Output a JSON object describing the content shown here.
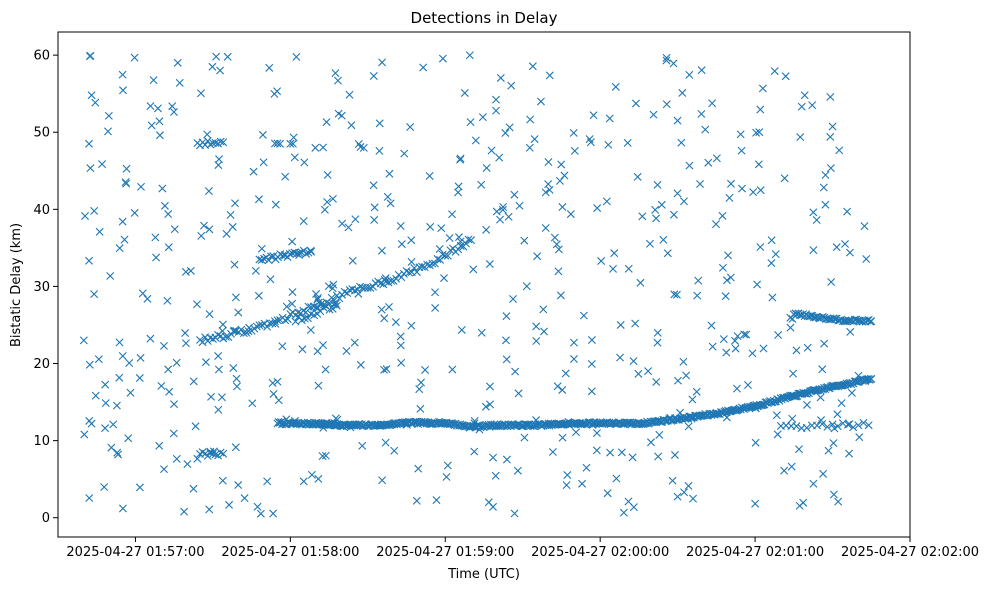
{
  "chart_data": {
    "type": "scatter",
    "title": "Detections in Delay",
    "xlabel": "Time (UTC)",
    "ylabel": "Bistatic Delay (km)",
    "marker": "x",
    "color": "#1f77b4",
    "grid": false,
    "legend": "none",
    "x_unit": "seconds after 2025-04-27 01:56:30 UTC",
    "xlim": [
      0,
      330
    ],
    "ylim": [
      -2.5,
      63
    ],
    "x_ticks": [
      {
        "value": 30,
        "label": "2025-04-27 01:57:00"
      },
      {
        "value": 90,
        "label": "2025-04-27 01:58:00"
      },
      {
        "value": 150,
        "label": "2025-04-27 01:59:00"
      },
      {
        "value": 210,
        "label": "2025-04-27 02:00:00"
      },
      {
        "value": 270,
        "label": "2025-04-27 02:01:00"
      },
      {
        "value": 330,
        "label": "2025-04-27 02:02:00"
      }
    ],
    "y_ticks": [
      {
        "value": 0,
        "label": "0"
      },
      {
        "value": 10,
        "label": "10"
      },
      {
        "value": 20,
        "label": "20"
      },
      {
        "value": 30,
        "label": "30"
      },
      {
        "value": 40,
        "label": "40"
      },
      {
        "value": 50,
        "label": "50"
      },
      {
        "value": 60,
        "label": "60"
      }
    ],
    "tracks": [
      {
        "name": "track-low",
        "points": [
          [
            85,
            12.3
          ],
          [
            90,
            12.2
          ],
          [
            100,
            12.2
          ],
          [
            110,
            12.0
          ],
          [
            125,
            12.0
          ],
          [
            135,
            12.3
          ],
          [
            150,
            12.3
          ],
          [
            160,
            11.8
          ],
          [
            170,
            12.0
          ],
          [
            185,
            12.0
          ],
          [
            200,
            12.2
          ],
          [
            210,
            12.3
          ],
          [
            225,
            12.2
          ],
          [
            240,
            12.8
          ],
          [
            255,
            13.5
          ],
          [
            270,
            14.5
          ],
          [
            285,
            15.8
          ],
          [
            300,
            17.0
          ],
          [
            315,
            18.0
          ]
        ],
        "step": 0.45,
        "jitter": 0.15
      },
      {
        "name": "track-rising",
        "points": [
          [
            55,
            23.0
          ],
          [
            70,
            24.0
          ],
          [
            85,
            25.5
          ],
          [
            100,
            27.5
          ],
          [
            115,
            29.5
          ],
          [
            130,
            31.0
          ],
          [
            145,
            33.0
          ],
          [
            160,
            36.0
          ]
        ],
        "step": 1.0,
        "jitter": 0.35
      },
      {
        "name": "track-right",
        "points": [
          [
            285,
            26.5
          ],
          [
            295,
            26.0
          ],
          [
            305,
            25.6
          ],
          [
            315,
            25.5
          ]
        ],
        "step": 0.6,
        "jitter": 0.15
      },
      {
        "name": "track-mid",
        "points": [
          [
            78,
            33.5
          ],
          [
            88,
            34.0
          ],
          [
            98,
            34.5
          ]
        ],
        "step": 0.9,
        "jitter": 0.3
      },
      {
        "name": "cluster-a",
        "points": [
          [
            54,
            48.5
          ],
          [
            64,
            48.7
          ]
        ],
        "step": 1.0,
        "jitter": 0.3
      },
      {
        "name": "cluster-b",
        "points": [
          [
            55,
            8.3
          ],
          [
            64,
            8.3
          ]
        ],
        "step": 1.0,
        "jitter": 0.3
      },
      {
        "name": "cluster-c",
        "points": [
          [
            98,
            12.3
          ],
          [
            112,
            12.0
          ]
        ],
        "step": 1.0,
        "jitter": 0.2
      },
      {
        "name": "cluster-d",
        "points": [
          [
            84,
            48.5
          ],
          [
            86,
            48.5
          ]
        ],
        "step": 1.0,
        "jitter": 0.2
      },
      {
        "name": "cluster-e",
        "points": [
          [
            92,
            25.5
          ],
          [
            108,
            27.5
          ]
        ],
        "step": 1.2,
        "jitter": 0.5
      },
      {
        "name": "cluster-f",
        "points": [
          [
            280,
            12.0
          ],
          [
            314,
            12.0
          ]
        ],
        "step": 2.0,
        "jitter": 0.4
      }
    ],
    "noise": {
      "count": 560,
      "x_range": [
        10,
        315
      ],
      "y_range": [
        0.5,
        60
      ],
      "seed": 7
    },
    "special_points": [
      [
        10,
        23.0
      ],
      [
        12,
        48.5
      ],
      [
        13,
        54.8
      ],
      [
        14,
        29.0
      ],
      [
        14,
        39.8
      ],
      [
        13,
        12.2
      ],
      [
        90,
        48.5
      ],
      [
        91,
        48.5
      ]
    ]
  }
}
